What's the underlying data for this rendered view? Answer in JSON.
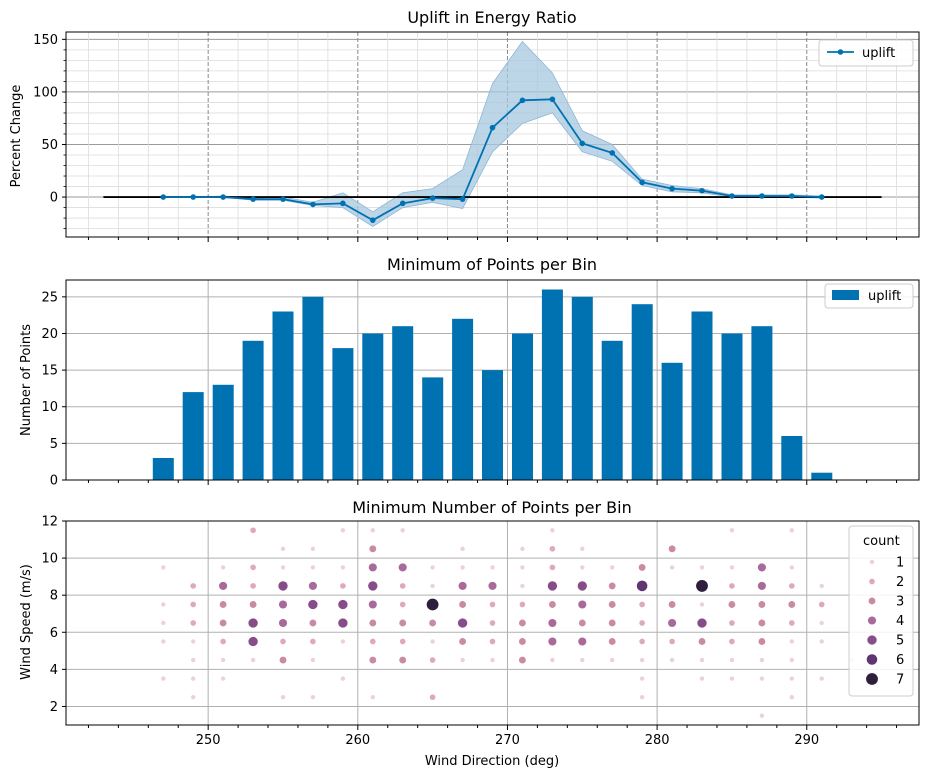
{
  "chart_data": [
    {
      "type": "line",
      "title": "Uplift in Energy Ratio",
      "xlabel": "",
      "ylabel": "Percent Change",
      "xlim": [
        240.5,
        297.5
      ],
      "ylim": [
        -38,
        157
      ],
      "y_ticks": [
        0,
        50,
        100,
        150
      ],
      "x_major_ticks": [
        250,
        260,
        270,
        280,
        290
      ],
      "grid": "major and minor",
      "legend": "top-right",
      "colors": {
        "line": "#0072b2",
        "band": "#a6c8e0",
        "zero": "#000000"
      },
      "reference_line": {
        "y": 0,
        "x": [
          243,
          295
        ]
      },
      "series": [
        {
          "name": "uplift",
          "x": [
            247,
            249,
            251,
            253,
            255,
            257,
            259,
            261,
            263,
            265,
            267,
            269,
            271,
            273,
            275,
            277,
            279,
            281,
            283,
            285,
            287,
            289,
            291
          ],
          "y": [
            0,
            0,
            0,
            -2,
            -2,
            -7,
            -6,
            -22,
            -6,
            -1,
            -2,
            66,
            92,
            93,
            51,
            42,
            14,
            8,
            6,
            1,
            1,
            1,
            0
          ],
          "y_lower": [
            0,
            0,
            0,
            -3,
            -3,
            -8,
            -10,
            -28,
            -10,
            -5,
            -11,
            43,
            70,
            80,
            43,
            34,
            11,
            5,
            4,
            0,
            0,
            0,
            -1
          ],
          "y_upper": [
            0,
            0,
            1,
            -1,
            0,
            -5,
            4,
            -14,
            4,
            8,
            26,
            108,
            148,
            118,
            63,
            50,
            17,
            11,
            8,
            2,
            2,
            2,
            1
          ]
        }
      ]
    },
    {
      "type": "bar",
      "title": "Minimum of Points per Bin",
      "xlabel": "",
      "ylabel": "Number of Points",
      "xlim": [
        240.5,
        297.5
      ],
      "ylim": [
        0,
        27.3
      ],
      "y_ticks": [
        0,
        5,
        10,
        15,
        20,
        25
      ],
      "x_major_ticks": [
        250,
        260,
        270,
        280,
        290
      ],
      "grid": "major",
      "legend": "top-right",
      "colors": {
        "bar": "#0072b2"
      },
      "series": [
        {
          "name": "uplift",
          "x": [
            247,
            249,
            251,
            253,
            255,
            257,
            259,
            261,
            263,
            265,
            267,
            269,
            271,
            273,
            275,
            277,
            279,
            281,
            283,
            285,
            287,
            289,
            291,
            293
          ],
          "values": [
            3,
            12,
            13,
            19,
            23,
            25,
            18,
            20,
            21,
            14,
            22,
            15,
            20,
            26,
            25,
            19,
            24,
            16,
            23,
            20,
            21,
            6,
            1,
            0
          ]
        }
      ]
    },
    {
      "type": "scatter",
      "title": "Minimum Number of Points per Bin",
      "xlabel": "Wind Direction (deg)",
      "ylabel": "Wind Speed (m/s)",
      "xlim": [
        240.5,
        297.5
      ],
      "ylim": [
        1,
        12
      ],
      "y_ticks": [
        2,
        4,
        6,
        8,
        10,
        12
      ],
      "x_ticks": [
        250,
        260,
        270,
        280,
        290
      ],
      "tick_labels": [
        "250",
        "260",
        "270",
        "280",
        "290"
      ],
      "grid": "major",
      "legend": "top-right",
      "legend_title": "count",
      "legend_entries": [
        "1",
        "2",
        "3",
        "4",
        "5",
        "6",
        "7"
      ],
      "count_colors": [
        "#ebd4cf",
        "#deaab3",
        "#c98aa5",
        "#a9699a",
        "#874d89",
        "#5f3672",
        "#2e1e3b"
      ],
      "points": [
        [
          247,
          9.5,
          1
        ],
        [
          247,
          7.5,
          1
        ],
        [
          247,
          6.5,
          1
        ],
        [
          247,
          5.5,
          1
        ],
        [
          247,
          3.5,
          1
        ],
        [
          249,
          8.5,
          2
        ],
        [
          249,
          7.5,
          2
        ],
        [
          249,
          6.5,
          2
        ],
        [
          249,
          5.5,
          1
        ],
        [
          249,
          4.5,
          1
        ],
        [
          249,
          3.5,
          1
        ],
        [
          249,
          2.5,
          1
        ],
        [
          251,
          9.5,
          1
        ],
        [
          251,
          8.5,
          4
        ],
        [
          251,
          7.5,
          3
        ],
        [
          251,
          6.5,
          3
        ],
        [
          251,
          5.5,
          2
        ],
        [
          251,
          4.5,
          1
        ],
        [
          251,
          3.5,
          1
        ],
        [
          253,
          11.5,
          2
        ],
        [
          253,
          9.5,
          2
        ],
        [
          253,
          8.5,
          2
        ],
        [
          253,
          7.5,
          3
        ],
        [
          253,
          6.5,
          5
        ],
        [
          253,
          5.5,
          5
        ],
        [
          253,
          4.5,
          1
        ],
        [
          255,
          10.5,
          1
        ],
        [
          255,
          9.5,
          1
        ],
        [
          255,
          8.5,
          5
        ],
        [
          255,
          7.5,
          4
        ],
        [
          255,
          6.5,
          4
        ],
        [
          255,
          5.5,
          2
        ],
        [
          255,
          4.5,
          3
        ],
        [
          255,
          2.5,
          1
        ],
        [
          257,
          10.5,
          1
        ],
        [
          257,
          9.5,
          1
        ],
        [
          257,
          8.5,
          4
        ],
        [
          257,
          7.5,
          5
        ],
        [
          257,
          6.5,
          3
        ],
        [
          257,
          5.5,
          2
        ],
        [
          257,
          4.5,
          1
        ],
        [
          257,
          2.5,
          1
        ],
        [
          259,
          11.5,
          1
        ],
        [
          259,
          9.5,
          1
        ],
        [
          259,
          8.5,
          2
        ],
        [
          259,
          7.5,
          5
        ],
        [
          259,
          6.5,
          5
        ],
        [
          259,
          5.5,
          1
        ],
        [
          259,
          3.5,
          1
        ],
        [
          261,
          11.5,
          1
        ],
        [
          261,
          10.5,
          3
        ],
        [
          261,
          9.5,
          4
        ],
        [
          261,
          8.5,
          5
        ],
        [
          261,
          7.5,
          4
        ],
        [
          261,
          6.5,
          3
        ],
        [
          261,
          5.5,
          2
        ],
        [
          261,
          4.5,
          3
        ],
        [
          261,
          2.5,
          1
        ],
        [
          263,
          11.5,
          1
        ],
        [
          263,
          9.5,
          4
        ],
        [
          263,
          8.5,
          2
        ],
        [
          263,
          7.5,
          2
        ],
        [
          263,
          6.5,
          3
        ],
        [
          263,
          5.5,
          2
        ],
        [
          263,
          4.5,
          3
        ],
        [
          265,
          9.5,
          1
        ],
        [
          265,
          8.5,
          1
        ],
        [
          265,
          7.5,
          7
        ],
        [
          265,
          6.5,
          3
        ],
        [
          265,
          5.5,
          1
        ],
        [
          265,
          4.5,
          2
        ],
        [
          265,
          2.5,
          2
        ],
        [
          267,
          10.5,
          1
        ],
        [
          267,
          9.5,
          1
        ],
        [
          267,
          8.5,
          4
        ],
        [
          267,
          7.5,
          3
        ],
        [
          267,
          6.5,
          5
        ],
        [
          267,
          5.5,
          3
        ],
        [
          267,
          4.5,
          1
        ],
        [
          269,
          9.5,
          1
        ],
        [
          269,
          8.5,
          4
        ],
        [
          269,
          7.5,
          2
        ],
        [
          269,
          6.5,
          2
        ],
        [
          269,
          5.5,
          2
        ],
        [
          269,
          4.5,
          1
        ],
        [
          271,
          10.5,
          1
        ],
        [
          271,
          9.5,
          1
        ],
        [
          271,
          8.5,
          1
        ],
        [
          271,
          7.5,
          2
        ],
        [
          271,
          6.5,
          3
        ],
        [
          271,
          5.5,
          3
        ],
        [
          271,
          4.5,
          3
        ],
        [
          273,
          11.5,
          1
        ],
        [
          273,
          10.5,
          2
        ],
        [
          273,
          9.5,
          2
        ],
        [
          273,
          8.5,
          5
        ],
        [
          273,
          7.5,
          3
        ],
        [
          273,
          6.5,
          4
        ],
        [
          273,
          5.5,
          4
        ],
        [
          273,
          4.5,
          1
        ],
        [
          275,
          10.5,
          1
        ],
        [
          275,
          9.5,
          1
        ],
        [
          275,
          8.5,
          5
        ],
        [
          275,
          7.5,
          4
        ],
        [
          275,
          6.5,
          3
        ],
        [
          275,
          5.5,
          4
        ],
        [
          275,
          4.5,
          1
        ],
        [
          277,
          9.5,
          1
        ],
        [
          277,
          8.5,
          3
        ],
        [
          277,
          7.5,
          3
        ],
        [
          277,
          6.5,
          3
        ],
        [
          277,
          5.5,
          3
        ],
        [
          277,
          4.5,
          1
        ],
        [
          279,
          9.5,
          3
        ],
        [
          279,
          8.5,
          6
        ],
        [
          279,
          7.5,
          2
        ],
        [
          279,
          6.5,
          2
        ],
        [
          279,
          5.5,
          2
        ],
        [
          279,
          4.5,
          1
        ],
        [
          279,
          3.5,
          1
        ],
        [
          279,
          2.5,
          1
        ],
        [
          281,
          10.5,
          3
        ],
        [
          281,
          9.5,
          1
        ],
        [
          281,
          7.5,
          3
        ],
        [
          281,
          6.5,
          4
        ],
        [
          281,
          5.5,
          2
        ],
        [
          281,
          4.5,
          1
        ],
        [
          283,
          9.5,
          1
        ],
        [
          283,
          8.5,
          7
        ],
        [
          283,
          7.5,
          1
        ],
        [
          283,
          6.5,
          5
        ],
        [
          283,
          5.5,
          3
        ],
        [
          283,
          4.5,
          1
        ],
        [
          283,
          3.5,
          1
        ],
        [
          285,
          11.5,
          1
        ],
        [
          285,
          9.5,
          1
        ],
        [
          285,
          8.5,
          2
        ],
        [
          285,
          7.5,
          3
        ],
        [
          285,
          6.5,
          2
        ],
        [
          285,
          5.5,
          2
        ],
        [
          285,
          4.5,
          1
        ],
        [
          285,
          3.5,
          1
        ],
        [
          287,
          9.5,
          4
        ],
        [
          287,
          8.5,
          4
        ],
        [
          287,
          7.5,
          3
        ],
        [
          287,
          6.5,
          3
        ],
        [
          287,
          5.5,
          3
        ],
        [
          287,
          4.5,
          1
        ],
        [
          287,
          3.5,
          1
        ],
        [
          287,
          1.5,
          1
        ],
        [
          289,
          11.5,
          1
        ],
        [
          289,
          9.5,
          1
        ],
        [
          289,
          8.5,
          2
        ],
        [
          289,
          7.5,
          3
        ],
        [
          289,
          6.5,
          2
        ],
        [
          289,
          5.5,
          1
        ],
        [
          289,
          4.5,
          1
        ],
        [
          289,
          3.5,
          1
        ],
        [
          289,
          2.5,
          1
        ],
        [
          291,
          8.5,
          1
        ],
        [
          291,
          7.5,
          2
        ],
        [
          291,
          6.5,
          1
        ],
        [
          291,
          5.5,
          1
        ],
        [
          291,
          3.5,
          1
        ],
        [
          293,
          4.5,
          1
        ]
      ]
    }
  ]
}
